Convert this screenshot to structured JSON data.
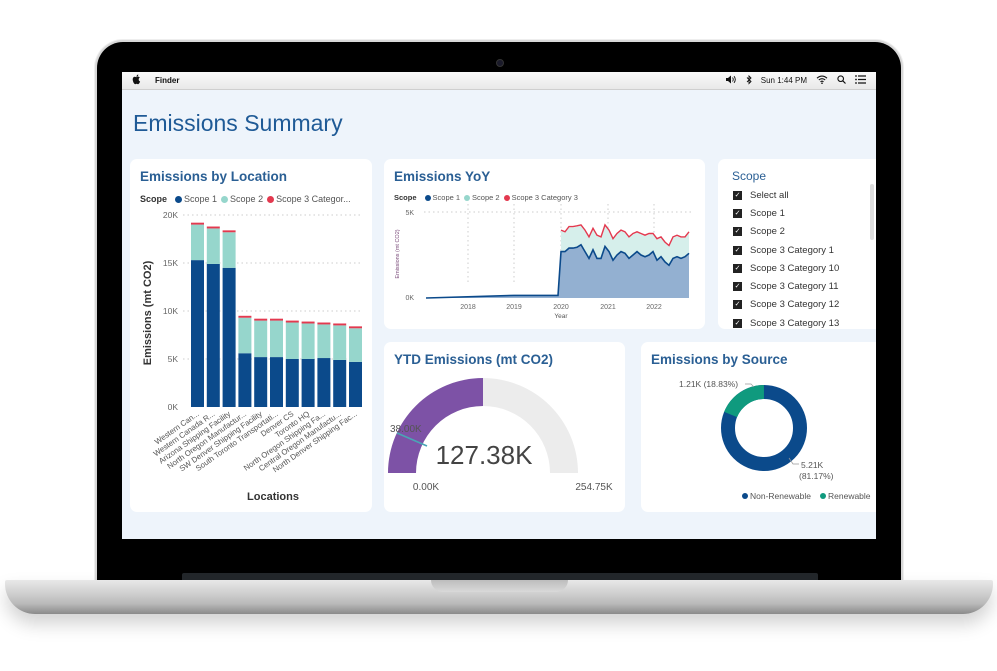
{
  "menubar": {
    "apple_icon": "apple-logo-icon",
    "app_name": "Finder",
    "status": {
      "volume_icon": "🔉",
      "bluetooth_icon": "✱",
      "clock": "Sun 1:44 PM",
      "wifi_icon": "wifi-icon",
      "search_icon": "⌕",
      "menu_icon": "☰"
    }
  },
  "dashboard": {
    "title": "Emissions Summary",
    "colors": {
      "scope1": "#0b4a8b",
      "scope2": "#96d6cc",
      "scope3": "#e3394f",
      "gauge": "#7d52a6",
      "gauge_bg": "#ececec",
      "renewable": "#0f9a7e",
      "title": "#2a5f94"
    }
  },
  "location_card": {
    "title": "Emissions by Location",
    "legend_label": "Scope",
    "legend": [
      "Scope 1",
      "Scope 2",
      "Scope 3 Categor..."
    ],
    "ylabel": "Emissions (mt CO2)",
    "xlabel": "Locations",
    "yticks": [
      "20K",
      "15K",
      "10K",
      "5K",
      "0K"
    ]
  },
  "yoy_card": {
    "title": "Emissions YoY",
    "legend_label": "Scope",
    "legend": [
      "Scope 1",
      "Scope 2",
      "Scope 3 Category 3"
    ],
    "ylabel": "Emissions (mt CO2)",
    "xlabel": "Year",
    "yticks": [
      "5K",
      "0K"
    ],
    "xticks": [
      "2018",
      "2019",
      "2020",
      "2021",
      "2022"
    ]
  },
  "slicer": {
    "title": "Scope",
    "items": [
      {
        "label": "Select all",
        "checked": true
      },
      {
        "label": "Scope 1",
        "checked": true
      },
      {
        "label": "Scope 2",
        "checked": true
      },
      {
        "label": "Scope 3 Category 1",
        "checked": true
      },
      {
        "label": "Scope 3 Category 10",
        "checked": true
      },
      {
        "label": "Scope 3 Category 11",
        "checked": true
      },
      {
        "label": "Scope 3 Category 12",
        "checked": true
      },
      {
        "label": "Scope 3 Category 13",
        "checked": true
      }
    ]
  },
  "gauge_card": {
    "title": "YTD Emissions (mt CO2)",
    "value": "127.38K",
    "min": "0.00K",
    "max": "254.75K",
    "target": "38.00K"
  },
  "source_card": {
    "title": "Emissions by Source",
    "renewable_label": "1.21K (18.83%)",
    "nonrenewable_label_1": "5.21K",
    "nonrenewable_label_2": "(81.17%)",
    "legend": [
      "Non-Renewable",
      "Renewable"
    ]
  },
  "chart_data": [
    {
      "type": "bar",
      "title": "Emissions by Location",
      "xlabel": "Locations",
      "ylabel": "Emissions (mt CO2)",
      "ylim": [
        0,
        20000
      ],
      "stacked": true,
      "legend_position": "top",
      "categories": [
        "Western Can...",
        "Western Canada R...",
        "Arizona Shipping Facility",
        "North Oregon Manufactur...",
        "SW Denver Shipping Facility",
        "South Toronto Transportati...",
        "Denver CS",
        "Toronto HQ",
        "North Oregon Shipping Fa...",
        "Central Oregon Manufactu...",
        "North Denver Shipping Fac..."
      ],
      "series": [
        {
          "name": "Scope 1",
          "values": [
            15300,
            14900,
            14500,
            5600,
            5200,
            5200,
            5000,
            5000,
            5100,
            4900,
            4700
          ]
        },
        {
          "name": "Scope 2",
          "values": [
            3700,
            3700,
            3700,
            3700,
            3800,
            3800,
            3800,
            3700,
            3500,
            3600,
            3500
          ]
        },
        {
          "name": "Scope 3 Category",
          "values": [
            200,
            200,
            200,
            200,
            200,
            200,
            200,
            200,
            200,
            200,
            200
          ]
        }
      ]
    },
    {
      "type": "area",
      "title": "Emissions YoY",
      "xlabel": "Year",
      "ylabel": "Emissions (mt CO2)",
      "ylim": [
        0,
        5000
      ],
      "x": [
        "2017-03",
        "2019-01",
        "2020-01",
        "2020-02",
        "2020-03",
        "2020-04",
        "2020-05",
        "2020-06",
        "2020-07",
        "2020-08",
        "2020-09",
        "2020-10",
        "2020-11",
        "2020-12",
        "2021-01",
        "2021-02",
        "2021-03",
        "2021-04",
        "2021-05",
        "2021-06",
        "2021-07",
        "2021-08",
        "2021-09",
        "2021-10",
        "2021-11",
        "2021-12",
        "2022-01",
        "2022-02",
        "2022-03",
        "2022-04",
        "2022-05",
        "2022-06",
        "2022-07",
        "2022-08",
        "2022-09",
        "2022-10"
      ],
      "series": [
        {
          "name": "Scope 1",
          "values": [
            0,
            150,
            150,
            2700,
            2700,
            2900,
            2900,
            2950,
            3100,
            2700,
            2300,
            2800,
            2300,
            2300,
            3000,
            2700,
            2200,
            2500,
            2700,
            2600,
            2300,
            2500,
            2700,
            2500,
            2400,
            2500,
            2700,
            2200,
            2400,
            2100,
            1900,
            2300,
            2400,
            2300,
            2400,
            2600
          ]
        },
        {
          "name": "Scope 2",
          "values": [
            0,
            0,
            0,
            1200,
            1100,
            1200,
            1200,
            1200,
            1100,
            1200,
            1200,
            1200,
            1300,
            1200,
            1200,
            1200,
            1200,
            1200,
            1200,
            1200,
            1200,
            1200,
            1100,
            1200,
            1200,
            1200,
            1000,
            1200,
            1100,
            1100,
            1100,
            1200,
            1200,
            1200,
            1100,
            1200
          ]
        },
        {
          "name": "Scope 3 Category 3",
          "values": [
            0,
            0,
            0,
            50,
            50,
            50,
            50,
            50,
            50,
            50,
            50,
            50,
            50,
            50,
            50,
            50,
            50,
            50,
            50,
            50,
            50,
            50,
            50,
            50,
            50,
            50,
            50,
            50,
            50,
            50,
            50,
            50,
            50,
            50,
            50,
            50
          ]
        }
      ]
    },
    {
      "type": "gauge",
      "title": "YTD Emissions (mt CO2)",
      "value": 127380,
      "min": 0,
      "max": 254750,
      "target": 38000
    },
    {
      "type": "pie",
      "title": "Emissions by Source",
      "donut": true,
      "categories": [
        "Non-Renewable",
        "Renewable"
      ],
      "values": [
        5210,
        1210
      ],
      "percentages": [
        81.17,
        18.83
      ],
      "legend_position": "bottom-right"
    }
  ]
}
